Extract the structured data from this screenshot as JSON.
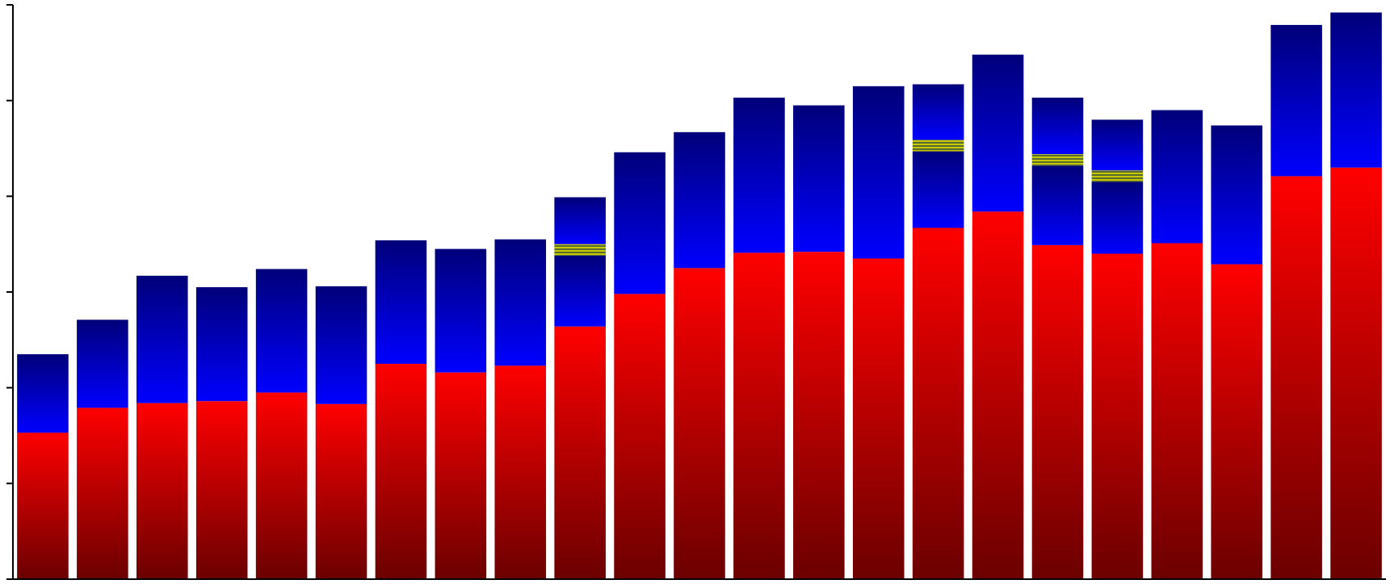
{
  "chart_data": {
    "type": "bar",
    "stacked": true,
    "grid": false,
    "legend": "none",
    "ylim": [
      0,
      60
    ],
    "y_ticks": [
      0,
      10,
      20,
      30,
      40,
      50,
      60
    ],
    "colors": {
      "bottom": [
        "#6b0000",
        "#ff0000"
      ],
      "middle": [
        "#0000ff",
        "#00007a"
      ],
      "band": [
        "#556b2f",
        "#c8c800"
      ]
    },
    "categories": [
      "",
      "",
      "",
      "",
      "",
      "",
      "",
      "",
      "",
      "",
      "",
      "",
      "",
      "",
      "",
      "",
      "",
      "",
      "",
      "",
      "",
      "",
      ""
    ],
    "series": [
      {
        "values": [
          15.3,
          17.9,
          18.4,
          18.6,
          19.5,
          18.3,
          22.5,
          21.6,
          22.3,
          26.4,
          29.8,
          32.5,
          34.1,
          34.2,
          33.5,
          36.7,
          38.4,
          34.9,
          34.0,
          35.1,
          32.9,
          42.1,
          43.0
        ]
      },
      {
        "values": [
          8.2,
          9.2,
          13.3,
          11.9,
          12.9,
          12.3,
          12.9,
          12.9,
          13.2,
          7.4,
          14.8,
          14.2,
          16.2,
          15.3,
          18.0,
          8.0,
          16.4,
          8.3,
          7.5,
          13.9,
          14.5,
          15.8,
          16.2
        ]
      },
      {
        "values": [
          0,
          0,
          0,
          0,
          0,
          0,
          0,
          0,
          0,
          1.2,
          0,
          0,
          0,
          0,
          0,
          1.2,
          0,
          1.2,
          1.2,
          0,
          0,
          0,
          0
        ]
      },
      {
        "values": [
          0,
          0,
          0,
          0,
          0,
          0,
          0,
          0,
          0,
          4.9,
          0,
          0,
          0,
          0,
          0,
          5.8,
          0,
          5.9,
          5.3,
          0,
          0,
          0,
          0
        ]
      }
    ]
  }
}
